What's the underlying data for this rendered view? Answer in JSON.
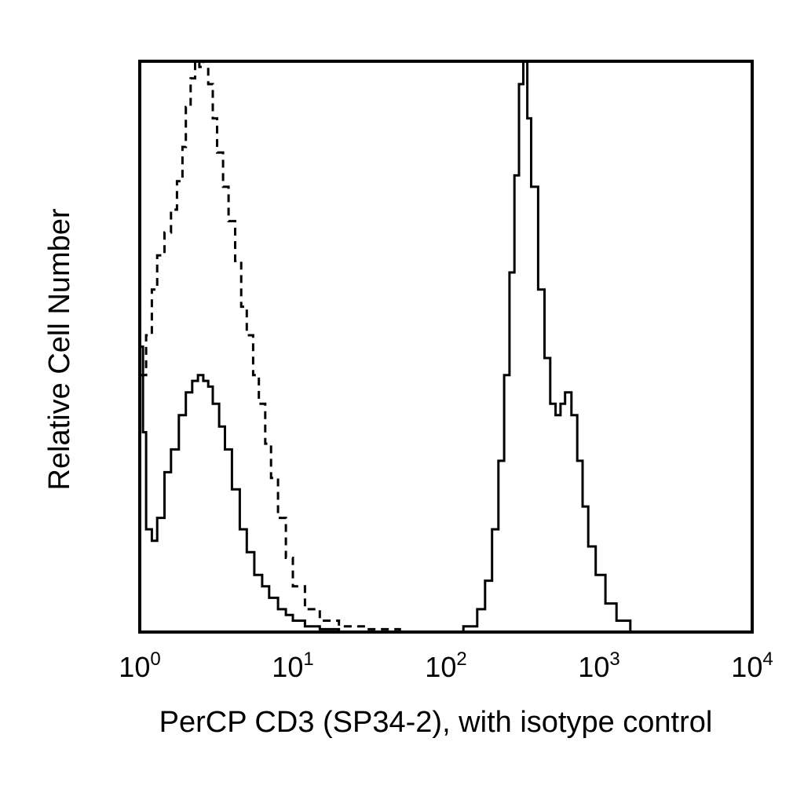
{
  "chart_data": {
    "type": "line",
    "title": "",
    "xlabel": "PerCP CD3 (SP34-2), with isotype control",
    "ylabel": "Relative Cell Number",
    "x_scale": "log",
    "xlim": [
      1,
      10000
    ],
    "ylim": [
      0,
      100
    ],
    "grid": false,
    "x_ticks": [
      {
        "value": 1,
        "base": "10",
        "exp": "0"
      },
      {
        "value": 10,
        "base": "10",
        "exp": "1"
      },
      {
        "value": 100,
        "base": "10",
        "exp": "2"
      },
      {
        "value": 1000,
        "base": "10",
        "exp": "3"
      },
      {
        "value": 10000,
        "base": "10",
        "exp": "4"
      }
    ],
    "series": [
      {
        "style": "dashed",
        "x": [
          1.0,
          1.1,
          1.2,
          1.3,
          1.45,
          1.6,
          1.75,
          1.9,
          2.0,
          2.15,
          2.3,
          2.45,
          2.6,
          2.8,
          3.0,
          3.2,
          3.5,
          3.8,
          4.2,
          4.6,
          5.0,
          5.5,
          6.0,
          6.6,
          7.2,
          8.0,
          9.0,
          10.0,
          12.0,
          15.0,
          20.0,
          30.0,
          50.0,
          100.0
        ],
        "y": [
          45,
          52,
          60,
          66,
          70,
          74,
          79,
          85,
          92,
          97,
          100,
          99,
          100,
          96,
          90,
          84,
          78,
          72,
          65,
          57,
          52,
          45,
          40,
          33,
          27,
          20,
          13,
          8,
          4,
          2,
          1,
          0.5,
          0,
          0
        ]
      },
      {
        "style": "solid",
        "x": [
          1.0,
          1.05,
          1.1,
          1.2,
          1.3,
          1.45,
          1.6,
          1.8,
          2.0,
          2.2,
          2.4,
          2.6,
          2.8,
          3.0,
          3.3,
          3.6,
          4.0,
          4.5,
          5.0,
          5.6,
          6.3,
          7.0,
          8.0,
          9.0,
          10.0,
          12.0,
          15.0,
          20.0,
          30.0,
          50.0
        ],
        "y": [
          50,
          35,
          18,
          16,
          20,
          28,
          32,
          38,
          42,
          44,
          45,
          44,
          43,
          40,
          36,
          32,
          25,
          18,
          14,
          10,
          8,
          6,
          4,
          3,
          2,
          1,
          0.5,
          0,
          0,
          0
        ]
      },
      {
        "style": "solid",
        "x": [
          100,
          130,
          160,
          180,
          200,
          220,
          240,
          260,
          280,
          300,
          320,
          340,
          360,
          400,
          440,
          480,
          520,
          560,
          600,
          660,
          720,
          780,
          850,
          950,
          1100,
          1300,
          1600,
          2000,
          3000,
          10000
        ],
        "y": [
          0,
          1,
          4,
          9,
          18,
          30,
          45,
          63,
          80,
          96,
          100,
          90,
          78,
          60,
          48,
          40,
          38,
          40,
          42,
          38,
          30,
          22,
          15,
          10,
          5,
          2,
          0,
          0,
          0,
          0
        ]
      }
    ]
  }
}
